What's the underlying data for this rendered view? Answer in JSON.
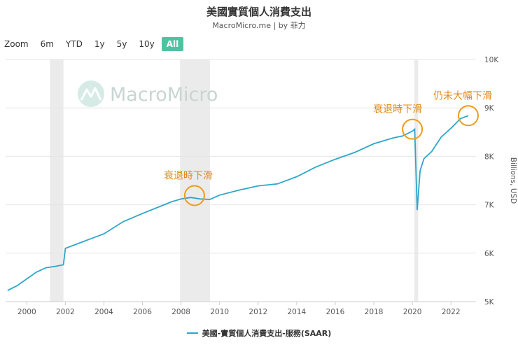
{
  "header": {
    "title": "美國實質個人消費支出",
    "subtitle": "MacroMicro.me | by 菲力"
  },
  "zoom": {
    "label": "Zoom",
    "buttons": [
      "6m",
      "YTD",
      "1y",
      "5y",
      "10y",
      "All"
    ],
    "active": "All"
  },
  "watermark": "MacroMicro",
  "colors": {
    "series": "#2ea7c8",
    "annotation": "#f29a1b",
    "recession": "#ebebeb",
    "zoom_active": "#4fc3a1"
  },
  "chart_data": {
    "type": "line",
    "title": "美國實質個人消費支出",
    "ylabel": "Billions, USD",
    "y_axis_side": "right",
    "ylim": [
      5000,
      10000
    ],
    "y_ticks": [
      5000,
      6000,
      7000,
      8000,
      9000,
      10000
    ],
    "y_tick_labels": [
      "5K",
      "6K",
      "7K",
      "8K",
      "9K",
      "10K"
    ],
    "xlim": [
      1998.9,
      2023.3
    ],
    "x_ticks": [
      2000,
      2002,
      2004,
      2006,
      2008,
      2010,
      2012,
      2014,
      2016,
      2018,
      2020,
      2022
    ],
    "x_tick_labels": [
      "2000",
      "2002",
      "2004",
      "2006",
      "2008",
      "2010",
      "2012",
      "2014",
      "2016",
      "2018",
      "2020",
      "2022"
    ],
    "grid": "horizontal",
    "legend": "bottom",
    "recession_shading": [
      [
        2001.2,
        2001.9
      ],
      [
        2007.95,
        2009.5
      ],
      [
        2020.1,
        2020.3
      ]
    ],
    "series": [
      {
        "name": "美國-實質個人消費支出-服務(SAAR)",
        "x": [
          1999.0,
          1999.5,
          2000.0,
          2000.5,
          2001.0,
          2001.5,
          2001.9,
          2002.0,
          2003.0,
          2004.0,
          2005.0,
          2006.0,
          2007.0,
          2007.5,
          2008.0,
          2008.5,
          2009.0,
          2009.5,
          2010.0,
          2011.0,
          2012.0,
          2013.0,
          2014.0,
          2015.0,
          2016.0,
          2017.0,
          2018.0,
          2019.0,
          2019.5,
          2020.0,
          2020.12,
          2020.25,
          2020.4,
          2020.6,
          2021.0,
          2021.5,
          2022.0,
          2022.5,
          2022.9
        ],
        "values": [
          5230,
          5330,
          5470,
          5610,
          5700,
          5730,
          5760,
          6100,
          6250,
          6400,
          6650,
          6820,
          6980,
          7060,
          7120,
          7150,
          7120,
          7110,
          7200,
          7300,
          7390,
          7430,
          7580,
          7780,
          7940,
          8080,
          8260,
          8380,
          8420,
          8520,
          8560,
          6890,
          7700,
          7950,
          8100,
          8400,
          8580,
          8780,
          8840
        ]
      }
    ],
    "annotations": [
      {
        "text": "衰退時下滑",
        "x": 2008.7,
        "y": 7190
      },
      {
        "text": "衰退時下滑",
        "x": 2020.0,
        "y": 8560
      },
      {
        "text": "仍未大幅下滑",
        "x": 2022.9,
        "y": 8840
      }
    ]
  }
}
